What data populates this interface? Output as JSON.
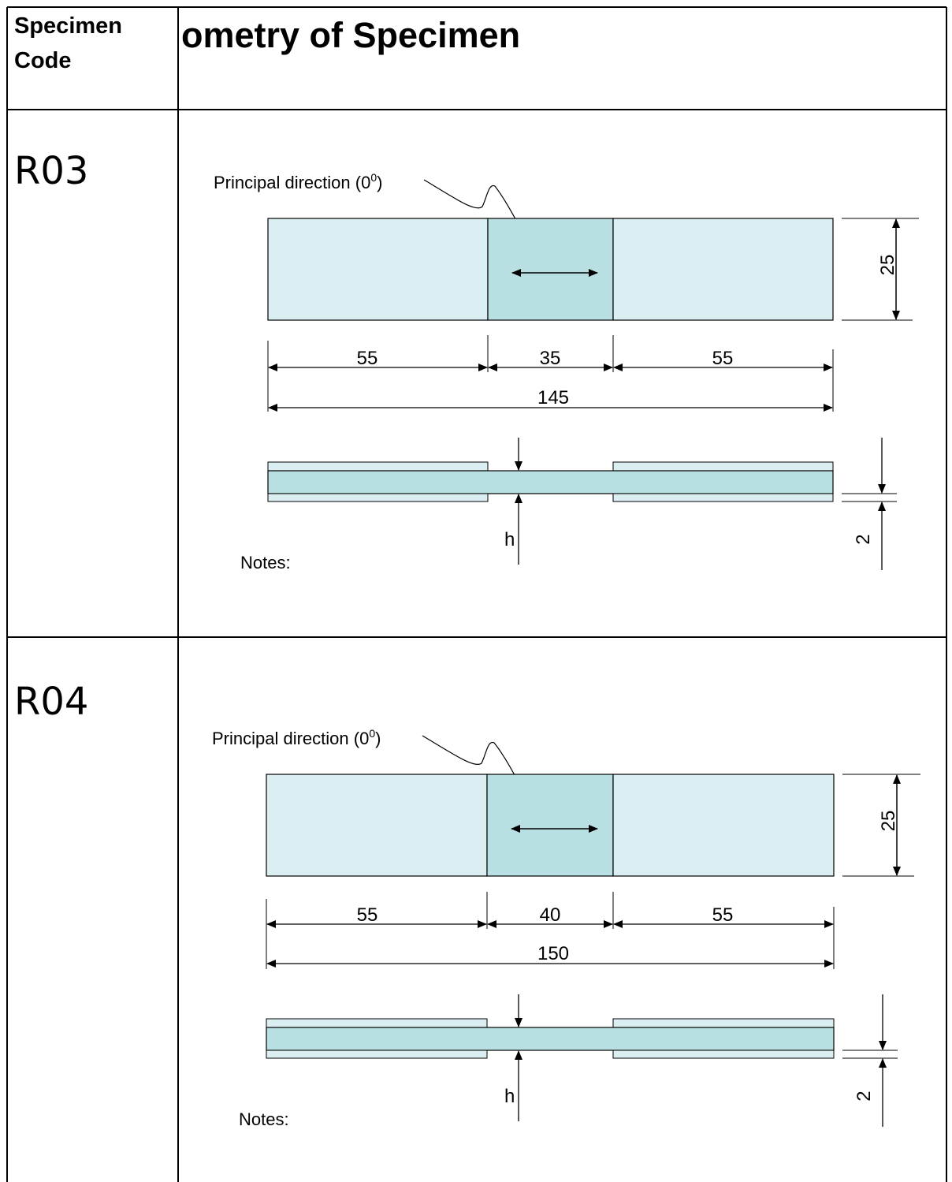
{
  "header": {
    "col1_line1": "Specimen",
    "col1_line2": "Code",
    "col2": "ometry of Specimen"
  },
  "colors": {
    "grip_fill": "#dbeef1",
    "gauge_fill": "#b8e0e3"
  },
  "specimens": [
    {
      "code": "R03",
      "principal_label": "Principal direction (0",
      "principal_sup": "0",
      "principal_close": ")",
      "width": "25",
      "left_grip": "55",
      "gauge_length": "35",
      "right_grip": "55",
      "total_length": "145",
      "thickness_label": "h",
      "tab_thickness": "2",
      "notes": "Notes:"
    },
    {
      "code": "R04",
      "principal_label": "Principal direction (0",
      "principal_sup": "0",
      "principal_close": ")",
      "width": "25",
      "left_grip": "55",
      "gauge_length": "40",
      "right_grip": "55",
      "total_length": "150",
      "thickness_label": "h",
      "tab_thickness": "2",
      "notes": "Notes:"
    }
  ]
}
